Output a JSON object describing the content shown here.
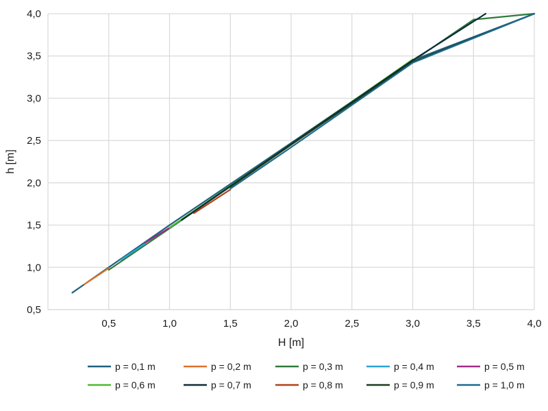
{
  "chart_data": {
    "type": "line",
    "title": "",
    "xlabel": "H [m]",
    "ylabel": "h [m]",
    "xlim": [
      0.0,
      4.0
    ],
    "ylim": [
      0.5,
      4.0
    ],
    "x_ticks": [
      0.5,
      1.0,
      1.5,
      2.0,
      2.5,
      3.0,
      3.5,
      4.0
    ],
    "x_tick_labels": [
      "0,5",
      "1,0",
      "1,5",
      "2,0",
      "2,5",
      "3,0",
      "3,5",
      "4,0"
    ],
    "y_ticks": [
      0.5,
      1.0,
      1.5,
      2.0,
      2.5,
      3.0,
      3.5,
      4.0
    ],
    "y_tick_labels": [
      "0,5",
      "1,0",
      "1,5",
      "2,0",
      "2,5",
      "3,0",
      "3,5",
      "4,0"
    ],
    "grid": true,
    "legend_position": "bottom",
    "series": [
      {
        "name": "p = 0,1 m",
        "color": "#1f5f7f",
        "x": [
          0.2,
          1.0,
          2.0,
          3.0,
          4.0
        ],
        "y": [
          0.7,
          1.5,
          2.47,
          3.45,
          4.0
        ]
      },
      {
        "name": "p = 0,2 m",
        "color": "#e0702a",
        "x": [
          0.3,
          0.5
        ],
        "y": [
          0.8,
          0.99
        ]
      },
      {
        "name": "p = 0,3 m",
        "color": "#2e7a3a",
        "x": [
          0.5,
          1.0,
          2.0,
          3.0,
          3.5,
          4.0
        ],
        "y": [
          0.97,
          1.46,
          2.45,
          3.44,
          3.93,
          4.0
        ]
      },
      {
        "name": "p = 0,4 m",
        "color": "#2aa5d6",
        "x": [
          0.6,
          0.8
        ],
        "y": [
          1.09,
          1.28
        ]
      },
      {
        "name": "p = 0,5 m",
        "color": "#a02d8a",
        "x": [
          0.8,
          1.0
        ],
        "y": [
          1.29,
          1.47
        ]
      },
      {
        "name": "p = 0,6 m",
        "color": "#4fb830",
        "x": [
          1.0,
          2.0,
          3.0
        ],
        "y": [
          1.47,
          2.46,
          3.46
        ]
      },
      {
        "name": "p = 0,7 m",
        "color": "#0d2b36",
        "x": [
          1.1,
          2.0,
          3.0,
          3.6
        ],
        "y": [
          1.56,
          2.46,
          3.45,
          4.0
        ]
      },
      {
        "name": "p = 0,8 m",
        "color": "#b0401a",
        "x": [
          1.2,
          1.5
        ],
        "y": [
          1.64,
          1.92
        ]
      },
      {
        "name": "p = 0,9 m",
        "color": "#1a3a1e",
        "x": [
          1.5,
          2.0,
          3.0,
          4.0
        ],
        "y": [
          1.95,
          2.45,
          3.43,
          4.0
        ]
      },
      {
        "name": "p = 1,0 m",
        "color": "#1e6a8e",
        "x": [
          1.5,
          2.0,
          3.0,
          4.0
        ],
        "y": [
          1.93,
          2.42,
          3.42,
          4.0
        ]
      }
    ]
  }
}
